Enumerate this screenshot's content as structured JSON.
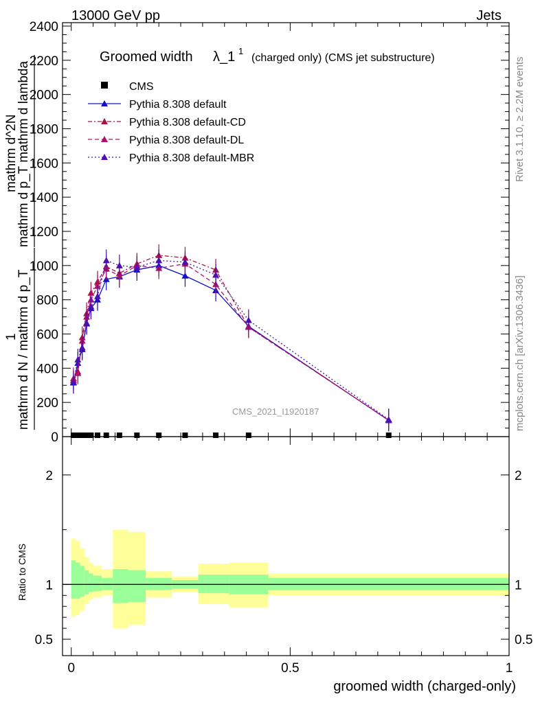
{
  "header": {
    "left": "13000 GeV pp",
    "right": "Jets"
  },
  "side_labels": {
    "upper": "Rivet 3.1.10, ≥ 2.2M events",
    "lower": "mcplots.cern.ch [arXiv:1306.3436]"
  },
  "watermark": "CMS_2021_I1920187",
  "chart_data": [
    {
      "type": "line",
      "title": "Groomed width",
      "title_symbol": "λ_1",
      "title_sup": "1",
      "title_suffix": "(charged only) (CMS jet substructure)",
      "ylabel_num_top": "1",
      "ylabel_den_top": "mathrm d N / mathrm d p_T",
      "ylabel_num_main": "mathrm d^2N",
      "ylabel_den_main": "mathrm d p_T mathrm d lambda",
      "xlim": [
        -0.02,
        1.0
      ],
      "ylim": [
        0,
        2420
      ],
      "yticks": [
        0,
        200,
        400,
        600,
        800,
        1000,
        1200,
        1400,
        1600,
        1800,
        2000,
        2200,
        2400
      ],
      "legend_position": "top-left",
      "x": [
        0.005,
        0.015,
        0.025,
        0.035,
        0.045,
        0.06,
        0.08,
        0.11,
        0.15,
        0.2,
        0.26,
        0.33,
        0.405,
        0.725
      ],
      "series": [
        {
          "name": "CMS",
          "color": "#000000",
          "marker": "square",
          "values": [
            0,
            0,
            0,
            0,
            0,
            0,
            0,
            0,
            0,
            0,
            0,
            0,
            0,
            0
          ]
        },
        {
          "name": "Pythia 8.308 default",
          "color": "#1010cc",
          "style": "solid",
          "marker": "triangle",
          "values": [
            315,
            430,
            510,
            660,
            750,
            800,
            920,
            935,
            975,
            1000,
            940,
            855,
            645,
            95
          ]
        },
        {
          "name": "Pythia 8.308 default-CD",
          "color": "#aa1144",
          "style": "dashdot",
          "marker": "triangle",
          "values": [
            340,
            380,
            580,
            720,
            840,
            905,
            995,
            955,
            1010,
            1060,
            1045,
            975,
            640,
            97
          ]
        },
        {
          "name": "Pythia 8.308 default-DL",
          "color": "#b0106a",
          "style": "dashed",
          "marker": "triangle",
          "values": [
            330,
            370,
            560,
            700,
            800,
            880,
            980,
            940,
            1000,
            985,
            1010,
            890,
            640,
            96
          ]
        },
        {
          "name": "Pythia 8.308 default-MBR",
          "color": "#4a10b0",
          "style": "dotted",
          "marker": "triangle",
          "values": [
            320,
            450,
            520,
            665,
            760,
            820,
            1030,
            1000,
            990,
            1030,
            1020,
            945,
            680,
            100
          ]
        }
      ]
    },
    {
      "type": "area",
      "ylabel": "Ratio to CMS",
      "xlabel": "groomed width (charged-only)",
      "xlim": [
        -0.02,
        1.0
      ],
      "ylim": [
        0.35,
        2.35
      ],
      "xticks": [
        0,
        0.5,
        1
      ],
      "xtick_labels": [
        "0",
        "0.5",
        "1"
      ],
      "yticks": [
        0.5,
        1,
        2
      ],
      "ytick_labels": [
        "0.5",
        "1",
        "2"
      ],
      "bins": [
        {
          "lo": 0.0,
          "hi": 0.01,
          "inner": [
            0.87,
            1.22
          ],
          "outer": [
            0.71,
            1.42
          ]
        },
        {
          "lo": 0.01,
          "hi": 0.02,
          "inner": [
            0.87,
            1.2
          ],
          "outer": [
            0.72,
            1.4
          ]
        },
        {
          "lo": 0.02,
          "hi": 0.03,
          "inner": [
            0.89,
            1.17
          ],
          "outer": [
            0.76,
            1.33
          ]
        },
        {
          "lo": 0.03,
          "hi": 0.04,
          "inner": [
            0.91,
            1.13
          ],
          "outer": [
            0.82,
            1.25
          ]
        },
        {
          "lo": 0.04,
          "hi": 0.05,
          "inner": [
            0.93,
            1.1
          ],
          "outer": [
            0.86,
            1.2
          ]
        },
        {
          "lo": 0.05,
          "hi": 0.07,
          "inner": [
            0.94,
            1.08
          ],
          "outer": [
            0.88,
            1.17
          ]
        },
        {
          "lo": 0.07,
          "hi": 0.095,
          "inner": [
            0.95,
            1.06
          ],
          "outer": [
            0.9,
            1.14
          ]
        },
        {
          "lo": 0.095,
          "hi": 0.13,
          "inner": [
            0.83,
            1.14
          ],
          "outer": [
            0.6,
            1.5
          ]
        },
        {
          "lo": 0.13,
          "hi": 0.17,
          "inner": [
            0.84,
            1.13
          ],
          "outer": [
            0.63,
            1.48
          ]
        },
        {
          "lo": 0.17,
          "hi": 0.23,
          "inner": [
            0.95,
            1.06
          ],
          "outer": [
            0.88,
            1.12
          ]
        },
        {
          "lo": 0.23,
          "hi": 0.29,
          "inner": [
            0.96,
            1.04
          ],
          "outer": [
            0.93,
            1.07
          ]
        },
        {
          "lo": 0.29,
          "hi": 0.36,
          "inner": [
            0.92,
            1.09
          ],
          "outer": [
            0.82,
            1.19
          ]
        },
        {
          "lo": 0.36,
          "hi": 0.45,
          "inner": [
            0.91,
            1.09
          ],
          "outer": [
            0.79,
            1.2
          ]
        },
        {
          "lo": 0.45,
          "hi": 1.0,
          "inner": [
            0.95,
            1.06
          ],
          "outer": [
            0.9,
            1.1
          ]
        }
      ]
    }
  ]
}
